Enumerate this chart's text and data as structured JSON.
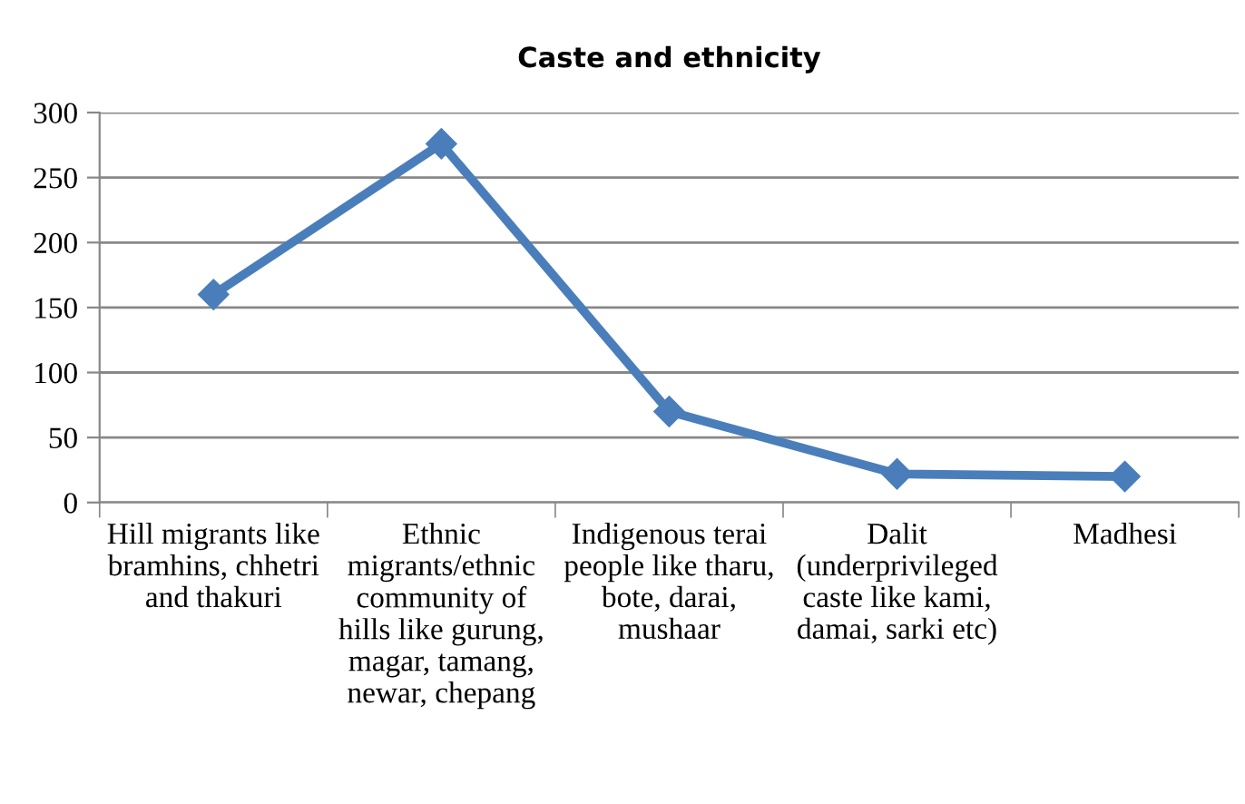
{
  "chart_data": {
    "type": "line",
    "title": "Caste and ethnicity",
    "categories": [
      "Hill migrants like\nbramhins, chhetri\nand thakuri",
      "Ethnic\nmigrants/ethnic\ncommunity of\nhills like gurung,\nmagar, tamang,\nnewar, chepang",
      "Indigenous terai\npeople like tharu,\nbote, darai,\nmushaar",
      "Dalit\n(underprivileged\ncaste like kami,\ndamai, sarki etc)",
      "Madhesi"
    ],
    "series": [
      {
        "color": "#4a7ebb",
        "values": [
          160,
          276,
          70,
          22,
          20
        ]
      }
    ],
    "ylim": [
      0,
      300
    ],
    "yticks": [
      0,
      50,
      100,
      150,
      200,
      250,
      300
    ],
    "grid": "y",
    "marker": "diamond",
    "line_style": "solid"
  }
}
